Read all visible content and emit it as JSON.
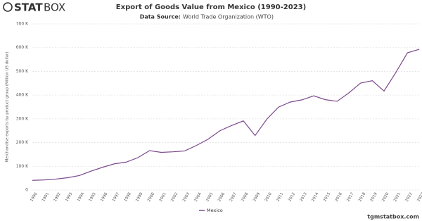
{
  "logo": {
    "part1": "STAT",
    "part2": "BOX"
  },
  "footer": "tgmstatbox.com",
  "chart_data": {
    "type": "line",
    "title": "Export of Goods Value from Mexico (1990-2023)",
    "subtitle_label": "Data Source:",
    "subtitle": "World Trade Organization (WTO)",
    "y_label": "Merchandise exports by product group (Million US dollar)",
    "categories": [
      "1990",
      "1991",
      "1992",
      "1993",
      "1994",
      "1995",
      "1996",
      "1997",
      "1998",
      "1999",
      "2000",
      "2001",
      "2002",
      "2003",
      "2004",
      "2005",
      "2006",
      "2007",
      "2008",
      "2009",
      "2010",
      "2011",
      "2012",
      "2013",
      "2014",
      "2015",
      "2016",
      "2017",
      "2018",
      "2019",
      "2020",
      "2021",
      "2022",
      "2023"
    ],
    "series": [
      {
        "name": "Mexico",
        "color": "#7b4a8c",
        "values": [
          40711,
          42688,
          46196,
          51886,
          60882,
          79542,
          95999,
          110431,
          117459,
          136391,
          166121,
          158780,
          161046,
          164766,
          187999,
          214233,
          249925,
          271875,
          291343,
          229704,
          298473,
          349433,
          370770,
          380015,
          396912,
          380772,
          373948,
          409401,
          450685,
          460704,
          417171,
          494765,
          578193,
          593012
        ]
      }
    ],
    "ylim": [
      0,
      700000
    ],
    "yticks": [
      0,
      {
        "value": 100000,
        "label": "100 K"
      },
      {
        "value": 200000,
        "label": "200 K"
      },
      {
        "value": 300000,
        "label": "300 K"
      },
      {
        "value": 400000,
        "label": "400 K"
      },
      {
        "value": 500000,
        "label": "500 K"
      },
      {
        "value": 600000,
        "label": "600 K"
      },
      {
        "value": 700000,
        "label": "700 K"
      }
    ],
    "grid": true
  }
}
